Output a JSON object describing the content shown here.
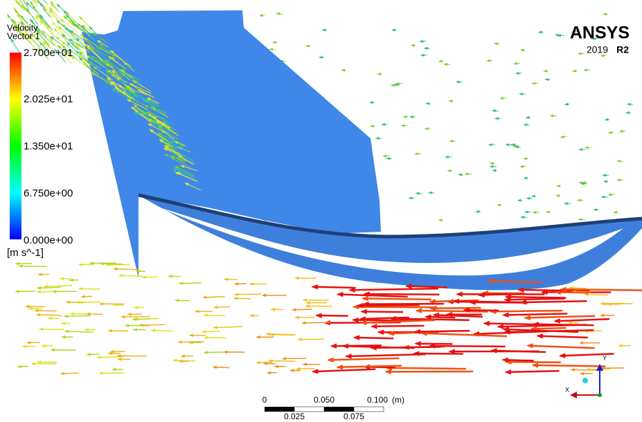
{
  "legend": {
    "title": "Velocity",
    "subtitle": "Vector 1",
    "labels": [
      "2.700e+01",
      "2.025e+01",
      "1.350e+01",
      "6.750e+00",
      "0.000e+00"
    ],
    "unit": "[m s^-1]"
  },
  "logo": {
    "brand": "ANSYS",
    "year": "2019",
    "release": "R2"
  },
  "scale_bar": {
    "top_labels": [
      "0",
      "0.050",
      "0.100",
      "(m)"
    ],
    "bottom_labels": [
      "0.025",
      "0.075"
    ]
  },
  "triad": {
    "x": "X",
    "y": "Y"
  }
}
